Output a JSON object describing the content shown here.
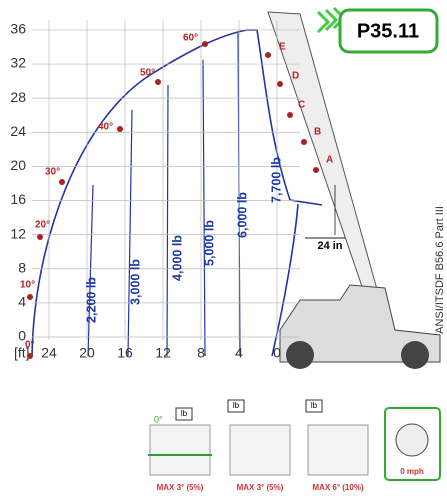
{
  "badge": "P35.11",
  "standard": "ANSI/ITSDF B56.6 Part III",
  "axes": {
    "unit": "[ft]",
    "y_ticks": [
      0,
      4,
      8,
      12,
      16,
      20,
      24,
      28,
      32,
      36
    ],
    "x_ticks": [
      24,
      20,
      16,
      12,
      8,
      4,
      0
    ]
  },
  "angles": [
    "0°",
    "10°",
    "20°",
    "30°",
    "40°",
    "50°",
    "60°"
  ],
  "extensions": [
    "A",
    "B",
    "C",
    "D",
    "E"
  ],
  "loads": [
    "2,200 lb",
    "3,000 lb",
    "4,000 lb",
    "5,000 lb",
    "6,000 lb",
    "7,700 lb"
  ],
  "dimension": "24 in",
  "footer": {
    "tilt": "0°",
    "icon_label": "lb",
    "items": [
      "MAX 3° (5%)",
      "MAX 3° (5%)",
      "MAX 6° (10%)"
    ],
    "speed": "0 mph"
  }
}
